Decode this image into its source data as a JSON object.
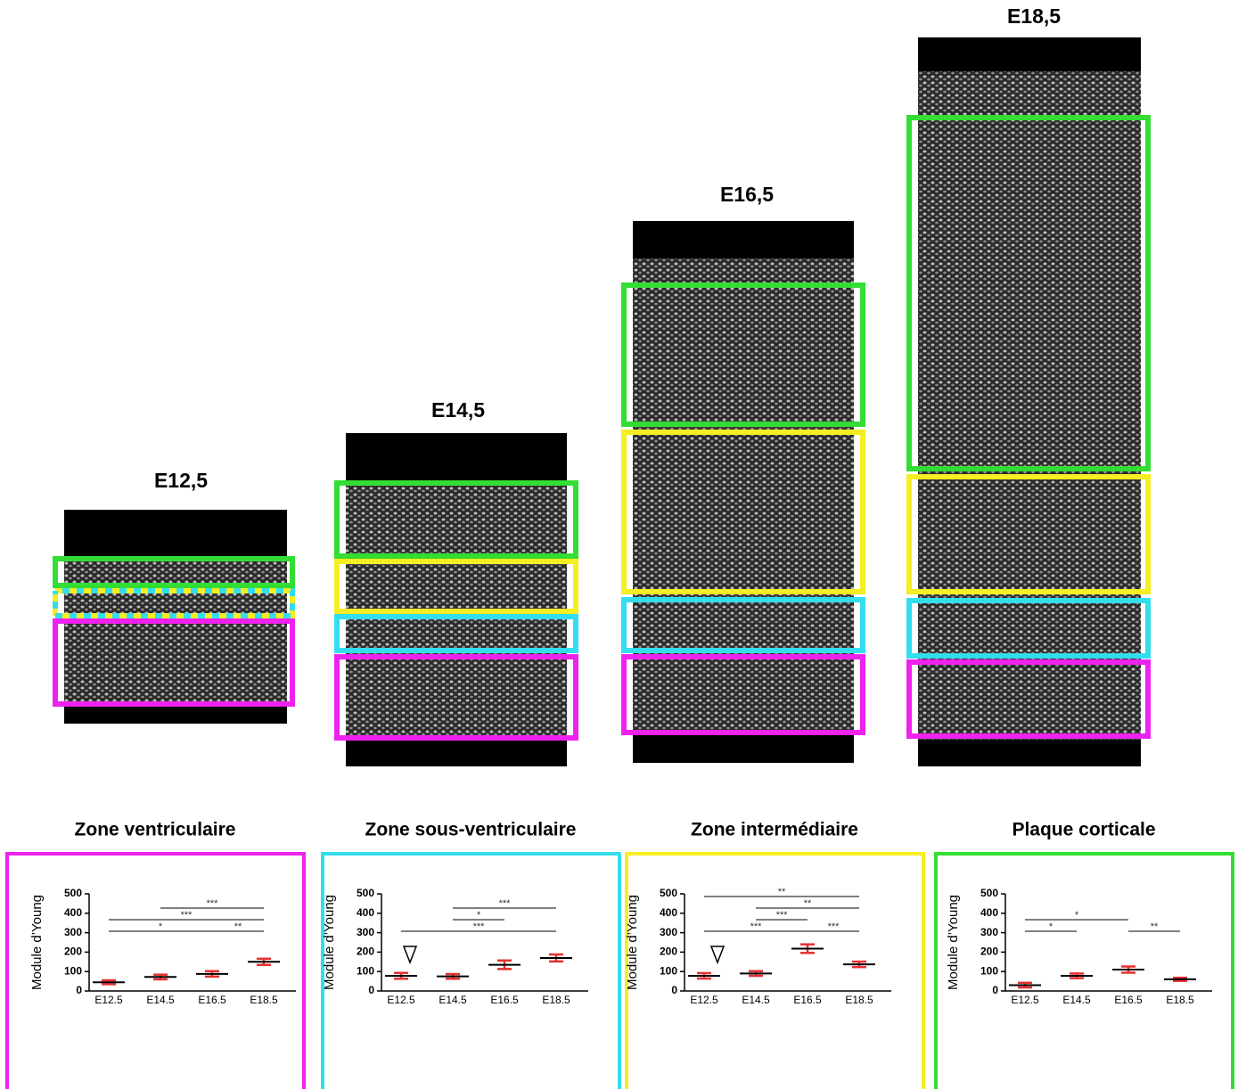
{
  "panels": [
    {
      "label": "E12,5"
    },
    {
      "label": "E14,5"
    },
    {
      "label": "E16,5"
    },
    {
      "label": "E18,5"
    }
  ],
  "chart_data": [
    {
      "type": "mean-error",
      "title": "Zone ventriculaire",
      "ylabel": "Module d’Young",
      "frame_color": "#ee22ee",
      "color": "#e53030",
      "categories": [
        "E12.5",
        "E14.5",
        "E16.5",
        "E18.5"
      ],
      "values": [
        45,
        72,
        88,
        150
      ],
      "errors": [
        10,
        12,
        14,
        16
      ],
      "ylim": [
        0,
        500
      ],
      "yticks": [
        0,
        100,
        200,
        300,
        400,
        500
      ],
      "annotations": [
        {
          "from": 0,
          "to": 2,
          "label": "*"
        },
        {
          "from": 0,
          "to": 3,
          "label": "***"
        },
        {
          "from": 1,
          "to": 3,
          "label": "***"
        },
        {
          "from": 2,
          "to": 3,
          "label": "**"
        }
      ]
    },
    {
      "type": "mean-error",
      "title": "Zone sous-ventriculaire",
      "ylabel": "Module d’Young",
      "frame_color": "#33ddee",
      "color": "#e53030",
      "categories": [
        "E12.5",
        "E14.5",
        "E16.5",
        "E18.5"
      ],
      "values": [
        78,
        75,
        135,
        170
      ],
      "errors": [
        15,
        12,
        22,
        18
      ],
      "ylim": [
        0,
        500
      ],
      "yticks": [
        0,
        100,
        200,
        300,
        400,
        500
      ],
      "annotations": [
        {
          "from": 0,
          "to": 3,
          "label": "***"
        },
        {
          "from": 1,
          "to": 2,
          "label": "*"
        },
        {
          "from": 1,
          "to": 3,
          "label": "***"
        }
      ]
    },
    {
      "type": "mean-error",
      "title": "Zone intermédiaire",
      "ylabel": "Module d’Young",
      "frame_color": "#f5ee22",
      "color": "#e53030",
      "categories": [
        "E12.5",
        "E14.5",
        "E16.5",
        "E18.5"
      ],
      "values": [
        78,
        90,
        218,
        137
      ],
      "errors": [
        14,
        12,
        22,
        14
      ],
      "ylim": [
        0,
        500
      ],
      "yticks": [
        0,
        100,
        200,
        300,
        400,
        500
      ],
      "annotations": [
        {
          "from": 0,
          "to": 2,
          "label": "***"
        },
        {
          "from": 2,
          "to": 3,
          "label": "***"
        },
        {
          "from": 1,
          "to": 2,
          "label": "***"
        },
        {
          "from": 1,
          "to": 3,
          "label": "**"
        },
        {
          "from": 0,
          "to": 3,
          "label": "**"
        }
      ]
    },
    {
      "type": "mean-error",
      "title": "Plaque corticale",
      "ylabel": "Module d’Young",
      "frame_color": "#33dd33",
      "color": "#e53030",
      "categories": [
        "E12.5",
        "E14.5",
        "E16.5",
        "E18.5"
      ],
      "values": [
        30,
        78,
        110,
        60
      ],
      "errors": [
        12,
        12,
        16,
        8
      ],
      "ylim": [
        0,
        500
      ],
      "yticks": [
        0,
        100,
        200,
        300,
        400,
        500
      ],
      "annotations": [
        {
          "from": 0,
          "to": 1,
          "label": "*"
        },
        {
          "from": 0,
          "to": 2,
          "label": "*"
        },
        {
          "from": 2,
          "to": 3,
          "label": "**"
        }
      ]
    }
  ]
}
